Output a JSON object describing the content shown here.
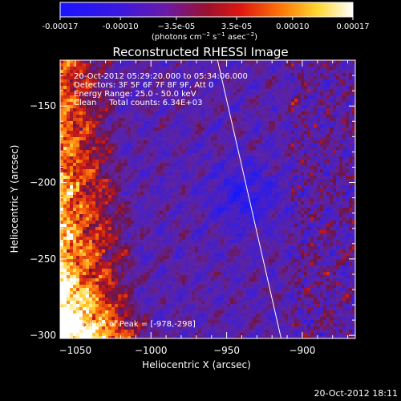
{
  "chart_data": {
    "type": "heatmap",
    "title": "Reconstructed RHESSI Image",
    "xlabel": "Heliocentric X (arcsec)",
    "ylabel": "Heliocentric Y (arcsec)",
    "xlim": [
      -1060,
      -865
    ],
    "ylim": [
      -302,
      -120
    ],
    "x_ticks": [
      -1050,
      -1000,
      -950,
      -900
    ],
    "y_ticks": [
      -150,
      -200,
      -250,
      -300
    ],
    "x_tick_labels": [
      "−1050",
      "−1000",
      "−950",
      "−900"
    ],
    "y_tick_labels": [
      "−150",
      "−200",
      "−250",
      "−300"
    ],
    "colorbar": {
      "range": [
        -0.00017,
        0.00017
      ],
      "ticks": [
        -0.00017,
        -0.0001,
        -3.5e-05,
        3.5e-05,
        0.0001,
        0.00017
      ],
      "tick_labels": [
        "-0.00017",
        "-0.00010",
        "−3.5e-05",
        "3.5e-05",
        "0.00010",
        "0.00017"
      ],
      "units_text": "(photons cm",
      "units_exp1": "−2",
      "units_mid": " s",
      "units_exp2": "−1",
      "units_end": " asec",
      "units_exp3": "−2",
      "units_close": ")",
      "colormap": "blue-purple-red-orange-yellow-white"
    },
    "limb_line": {
      "x": [
        -956,
        -914
      ],
      "y": [
        -120,
        -302
      ]
    },
    "peak": {
      "x": -978,
      "y": -298
    },
    "info_lines": [
      "20-Oct-2012 05:29:20.000 to 05:34:06.000",
      "Detectors: 3F 5F 6F 7F 8F 9F, Att 0",
      "Energy Range: 25.0 - 50.0 keV",
      "Clean     Total counts: 6.34E+03"
    ],
    "peak_text": "Position of Peak = [-978,-298]",
    "timestamp": "20-Oct-2012 18:11"
  }
}
